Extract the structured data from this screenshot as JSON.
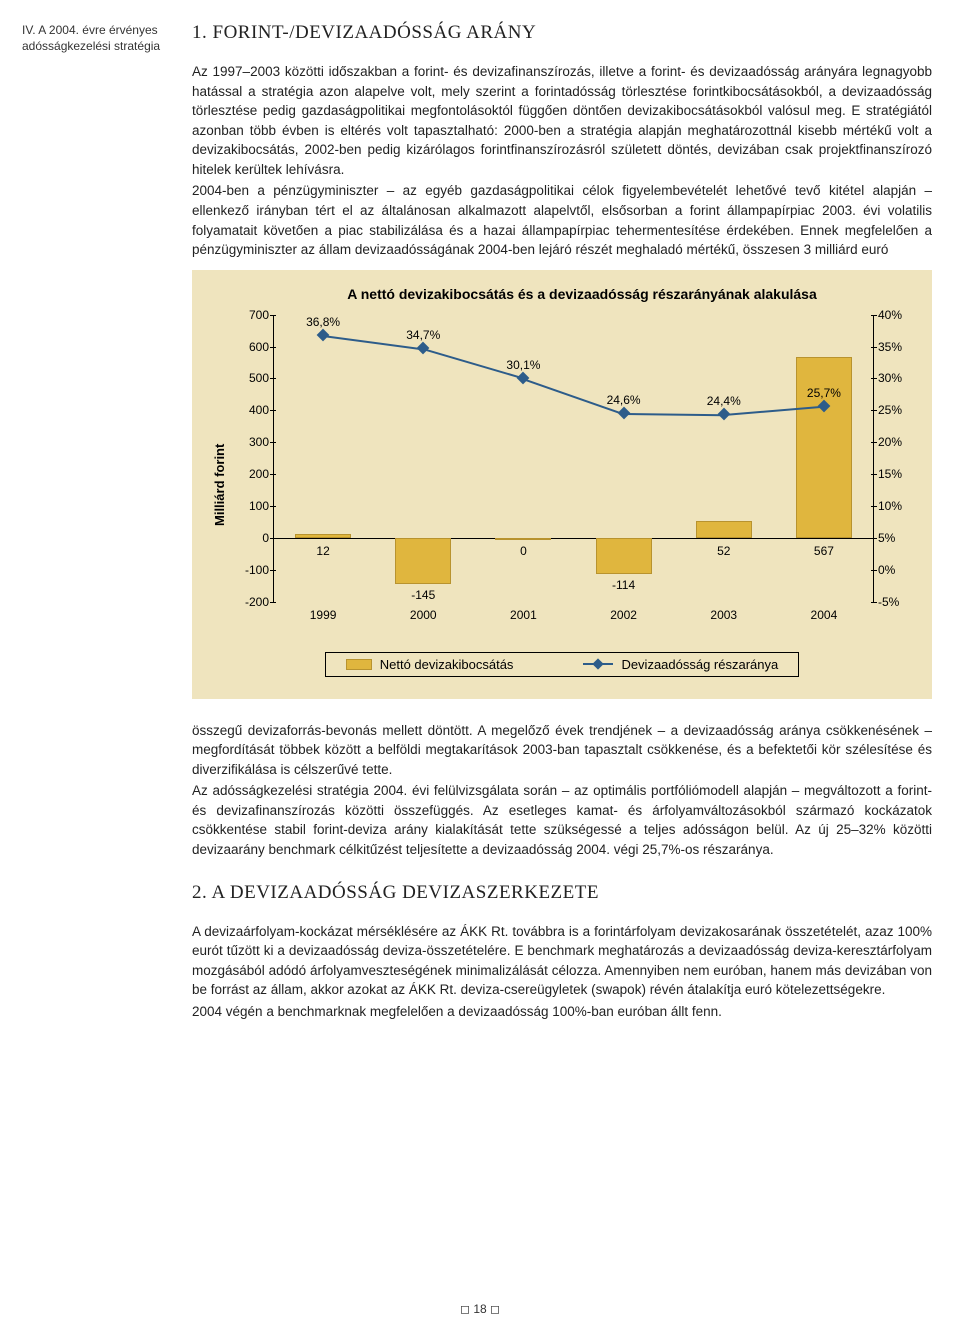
{
  "sidebar_note": "IV. A 2004. évre érvényes adósságkezelési stratégia",
  "section1": {
    "title": "1. FORINT-/DEVIZAADÓSSÁG ARÁNY",
    "p1": "Az 1997–2003 közötti időszakban a forint- és devizafinanszírozás, illetve a forint- és devizaadósság arányára legnagyobb hatással a stratégia azon alapelve volt, mely szerint a forintadósság törlesztése forintkibocsátásokból, a devizaadósság törlesztése pedig gazdaságpolitikai megfontolásoktól függően döntően devizakibocsátásokból valósul meg. E stratégiától azonban több évben is eltérés volt tapasztalható: 2000-ben a stratégia alapján meghatározottnál kisebb mértékű volt a devizakibocsátás, 2002-ben pedig kizárólagos forintfinanszírozásról született döntés, devizában csak projektfinanszírozó hitelek kerültek lehívásra.",
    "p2": "2004-ben a pénzügyminiszter – az egyéb gazdaságpolitikai célok figyelembevételét lehetővé tevő kitétel alapján – ellenkező irányban tért el az általánosan alkalmazott alapelvtől, elsősorban a forint állampapírpiac 2003. évi volatilis folyamatait követően a piac stabilizálása és a hazai állampapírpiac tehermentesítése érdekében. Ennek megfelelően a pénzügyminiszter az állam devizaadósságának 2004-ben lejáró részét meghaladó mértékű, összesen 3 milliárd euró",
    "p3": "összegű devizaforrás-bevonás mellett döntött. A megelőző évek trendjének – a devizaadósság aránya csökkenésének – megfordítását többek között a belföldi megtakarítások 2003-ban tapasztalt csökkenése, és a befektetői kör szélesítése és diverzifikálása is célszerűvé tette.",
    "p4": "Az adósságkezelési stratégia 2004. évi felülvizsgálata során – az optimális portfóliómodell alapján – megváltozott a forint- és devizafinanszírozás közötti összefüggés. Az esetleges kamat- és árfolyamváltozásokból származó kockázatok csökkentése stabil forint-deviza arány kialakítását tette szükségessé a teljes adósságon belül. Az új 25–32% közötti devizaarány benchmark célkitűzést teljesítette a devizaadósság 2004. végi 25,7%-os részaránya."
  },
  "chart": {
    "title": "A nettó devizakibocsátás és a devizaadósság részarányának alakulása",
    "ylabel": "Milliárd forint",
    "yl_min": -200,
    "yl_max": 700,
    "yl_step": 100,
    "yr_min": -5,
    "yr_max": 40,
    "yr_step": 5,
    "years": [
      "1999",
      "2000",
      "2001",
      "2002",
      "2003",
      "2004"
    ],
    "bars": [
      12,
      -145,
      0,
      -114,
      52,
      567
    ],
    "line": [
      36.8,
      34.7,
      30.1,
      24.6,
      24.4,
      25.7
    ],
    "line_labels": [
      "36,8%",
      "34,7%",
      "30,1%",
      "24,6%",
      "24,4%",
      "25,7%"
    ],
    "bar_color": "#e0b63e",
    "line_color": "#2d5c8a",
    "panel_bg": "#efe4be",
    "legend_bar": "Nettó devizakibocsátás",
    "legend_line": "Devizaadósság részaránya"
  },
  "section2": {
    "title": "2. A DEVIZAADÓSSÁG DEVIZASZERKEZETE",
    "p1": "A devizaárfolyam-kockázat mérséklésére az ÁKK Rt. továbbra is a forintárfolyam devizakosarának összetételét, azaz 100% eurót tűzött ki a devizaadósság deviza-összetételére. E benchmark meghatározás a devizaadósság deviza-keresztárfolyam mozgásából adódó árfolyamveszteségének minimalizálását célozza. Amennyiben nem euróban, hanem más devizában von be forrást az állam, akkor azokat az ÁKK Rt. deviza-csereügyletek (swapok) révén átalakítja euró kötelezettségekre.",
    "p2": "2004 végén a benchmarknak megfelelően a devizaadósság 100%-ban euróban állt fenn."
  },
  "page_num": "18"
}
